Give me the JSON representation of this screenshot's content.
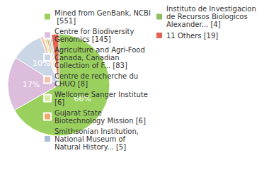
{
  "chart_data": {
    "type": "pie",
    "categories": [
      "Mined from GenBank, NCBI [551]",
      "Centre for Biodiversity Genomics [145]",
      "Agriculture and Agri-Food Canada, Canadian Collection of F... [83]",
      "Centre de recherche du CHUQ [8]",
      "Wellcome Sanger Institute [6]",
      "Gujarat State Biotechnology Mission [6]",
      "Smithsonian Institution, National Museum of Natural History... [5]",
      "Instituto de Investigacion de Recursos Biologicos Alexander... [4]",
      "11 Others [19]"
    ],
    "values": [
      66,
      17,
      10,
      1,
      0.7,
      0.7,
      0.6,
      0.5,
      2.3
    ],
    "value_labels": [
      "66%",
      "17%",
      "10%",
      null,
      null,
      null,
      null,
      null,
      null
    ],
    "colors": [
      "#9ad15e",
      "#dcbddc",
      "#cad6e6",
      "#f4c3ad",
      "#d9e8a4",
      "#f2a967",
      "#a9bed6",
      "#8cc063",
      "#e26551"
    ],
    "data_labels": true,
    "legend": "right"
  }
}
